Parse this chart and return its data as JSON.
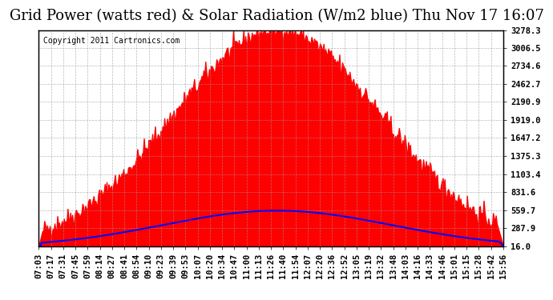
{
  "title": "Grid Power (watts red) & Solar Radiation (W/m2 blue) Thu Nov 17 16:07",
  "copyright": "Copyright 2011 Cartronics.com",
  "background_color": "#ffffff",
  "plot_bg_color": "#ffffff",
  "yticks": [
    16.0,
    287.9,
    559.7,
    831.6,
    1103.4,
    1375.3,
    1647.2,
    1919.0,
    2190.9,
    2462.7,
    2734.6,
    3006.5,
    3278.3
  ],
  "ymin": 16.0,
  "ymax": 3278.3,
  "x_labels": [
    "07:03",
    "07:17",
    "07:31",
    "07:45",
    "07:59",
    "08:14",
    "08:27",
    "08:41",
    "08:54",
    "09:10",
    "09:23",
    "09:39",
    "09:53",
    "10:07",
    "10:20",
    "10:34",
    "10:47",
    "11:00",
    "11:13",
    "11:26",
    "11:40",
    "11:54",
    "12:07",
    "12:20",
    "12:36",
    "12:52",
    "13:05",
    "13:19",
    "13:32",
    "13:48",
    "14:03",
    "14:16",
    "14:33",
    "14:46",
    "15:01",
    "15:15",
    "15:28",
    "15:42",
    "15:56"
  ],
  "grid_color": "#999999",
  "fill_color_red": "#ff0000",
  "fill_color_blue": "#0000ff",
  "line_color_blue": "#0000ff",
  "title_fontsize": 13,
  "tick_fontsize": 7.5,
  "copyright_fontsize": 7
}
